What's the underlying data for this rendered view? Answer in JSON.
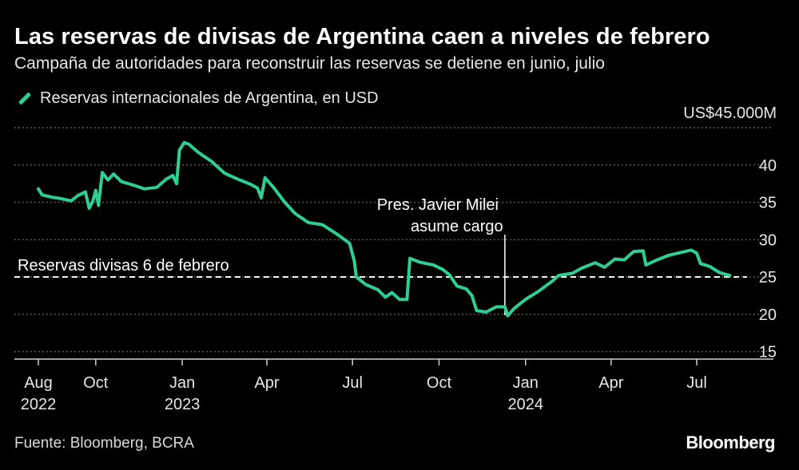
{
  "header": {
    "title": "Las reservas de divisas de Argentina caen a niveles de febrero",
    "subtitle": "Campaña de autoridades para reconstruir las reservas se detiene en junio, julio"
  },
  "footer": {
    "source": "Fuente: Bloomberg, BCRA",
    "brand": "Bloomberg"
  },
  "colors": {
    "background": "#000000",
    "series": "#2fcf94",
    "grid": "#5a5a5a",
    "reference": "#ffffff"
  },
  "chart_data": {
    "type": "line",
    "title": "Las reservas de divisas de Argentina caen a niveles de febrero",
    "subtitle": "Campaña de autoridades para reconstruir las reservas se detiene en junio, julio",
    "ylim": [
      14,
      45
    ],
    "y_unit_label": "US$45.000M",
    "y_ticks": [
      15,
      20,
      25,
      30,
      35,
      40
    ],
    "x_start": "2022-07-01",
    "x_end": "2024-09-30",
    "x_ticks": [
      {
        "date": "2022-08-01",
        "line1": "Aug",
        "line2": "2022"
      },
      {
        "date": "2022-10-01",
        "line1": "Oct",
        "line2": ""
      },
      {
        "date": "2023-01-01",
        "line1": "Jan",
        "line2": "2023"
      },
      {
        "date": "2023-04-01",
        "line1": "Apr",
        "line2": ""
      },
      {
        "date": "2023-07-01",
        "line1": "Jul",
        "line2": ""
      },
      {
        "date": "2023-10-01",
        "line1": "Oct",
        "line2": ""
      },
      {
        "date": "2024-01-01",
        "line1": "Jan",
        "line2": "2024"
      },
      {
        "date": "2024-04-01",
        "line1": "Apr",
        "line2": ""
      },
      {
        "date": "2024-07-01",
        "line1": "Jul",
        "line2": ""
      }
    ],
    "grid": "horizontal-dotted",
    "legend_placement": "top-left",
    "series": [
      {
        "name": "Reservas internacionales de Argentina, en USD",
        "color": "#2fcf94",
        "points": [
          [
            "2022-08-01",
            36.8
          ],
          [
            "2022-08-05",
            36.0
          ],
          [
            "2022-08-15",
            35.7
          ],
          [
            "2022-08-25",
            35.5
          ],
          [
            "2022-09-05",
            35.2
          ],
          [
            "2022-09-12",
            35.9
          ],
          [
            "2022-09-20",
            36.4
          ],
          [
            "2022-09-24",
            34.2
          ],
          [
            "2022-09-28",
            35.2
          ],
          [
            "2022-10-01",
            36.6
          ],
          [
            "2022-10-04",
            34.6
          ],
          [
            "2022-10-08",
            39.0
          ],
          [
            "2022-10-14",
            38.0
          ],
          [
            "2022-10-20",
            38.8
          ],
          [
            "2022-10-28",
            37.8
          ],
          [
            "2022-11-10",
            37.3
          ],
          [
            "2022-11-22",
            36.8
          ],
          [
            "2022-12-05",
            37.0
          ],
          [
            "2022-12-15",
            38.1
          ],
          [
            "2022-12-22",
            38.6
          ],
          [
            "2022-12-26",
            37.5
          ],
          [
            "2022-12-29",
            42.0
          ],
          [
            "2023-01-03",
            43.0
          ],
          [
            "2023-01-08",
            42.8
          ],
          [
            "2023-01-18",
            41.7
          ],
          [
            "2023-02-01",
            40.5
          ],
          [
            "2023-02-15",
            38.9
          ],
          [
            "2023-03-01",
            38.1
          ],
          [
            "2023-03-15",
            37.4
          ],
          [
            "2023-03-22",
            36.9
          ],
          [
            "2023-03-26",
            35.6
          ],
          [
            "2023-03-30",
            38.3
          ],
          [
            "2023-04-08",
            37.0
          ],
          [
            "2023-04-20",
            35.0
          ],
          [
            "2023-05-01",
            33.5
          ],
          [
            "2023-05-15",
            32.3
          ],
          [
            "2023-05-30",
            32.0
          ],
          [
            "2023-06-15",
            30.7
          ],
          [
            "2023-06-28",
            29.5
          ],
          [
            "2023-07-03",
            27.1
          ],
          [
            "2023-07-05",
            25.0
          ],
          [
            "2023-07-15",
            24.0
          ],
          [
            "2023-07-28",
            23.3
          ],
          [
            "2023-08-05",
            22.3
          ],
          [
            "2023-08-12",
            22.9
          ],
          [
            "2023-08-20",
            22.0
          ],
          [
            "2023-08-28",
            22.0
          ],
          [
            "2023-08-31",
            27.5
          ],
          [
            "2023-09-10",
            27.0
          ],
          [
            "2023-09-25",
            26.6
          ],
          [
            "2023-10-05",
            26.0
          ],
          [
            "2023-10-12",
            25.3
          ],
          [
            "2023-10-20",
            23.8
          ],
          [
            "2023-10-30",
            23.4
          ],
          [
            "2023-11-05",
            22.5
          ],
          [
            "2023-11-10",
            20.5
          ],
          [
            "2023-11-20",
            20.3
          ],
          [
            "2023-12-01",
            21.0
          ],
          [
            "2023-12-10",
            21.0
          ],
          [
            "2023-12-13",
            19.8
          ],
          [
            "2023-12-20",
            20.8
          ],
          [
            "2024-01-01",
            22.0
          ],
          [
            "2024-01-15",
            23.1
          ],
          [
            "2024-01-30",
            24.5
          ],
          [
            "2024-02-05",
            25.2
          ],
          [
            "2024-02-20",
            25.5
          ],
          [
            "2024-03-01",
            26.2
          ],
          [
            "2024-03-15",
            26.9
          ],
          [
            "2024-03-25",
            26.3
          ],
          [
            "2024-04-05",
            27.4
          ],
          [
            "2024-04-15",
            27.3
          ],
          [
            "2024-04-25",
            28.4
          ],
          [
            "2024-05-05",
            28.5
          ],
          [
            "2024-05-08",
            26.6
          ],
          [
            "2024-05-20",
            27.3
          ],
          [
            "2024-06-01",
            27.9
          ],
          [
            "2024-06-15",
            28.3
          ],
          [
            "2024-06-25",
            28.6
          ],
          [
            "2024-07-01",
            28.2
          ],
          [
            "2024-07-05",
            26.8
          ],
          [
            "2024-07-15",
            26.4
          ],
          [
            "2024-07-25",
            25.6
          ],
          [
            "2024-08-05",
            25.2
          ]
        ]
      }
    ],
    "annotations": [
      {
        "type": "hline",
        "y": 25.0,
        "style": "dashed",
        "label": "Reservas divisas 6 de febrero"
      },
      {
        "type": "vline",
        "date": "2023-12-10",
        "label_line1": "Pres. Javier Milei",
        "label_line2": "asume cargo"
      }
    ]
  }
}
